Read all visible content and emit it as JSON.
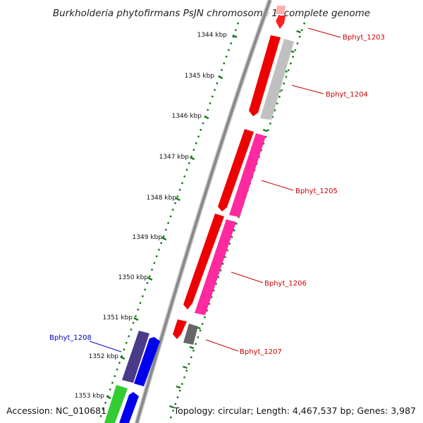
{
  "title": "Burkholderia phytofirmans PsJN chromosome 1, complete genome",
  "footer": {
    "accession": "Accession: NC_010681",
    "summary": "Topology: circular; Length: 4,467,537 bp; Genes: 3,987"
  },
  "colors": {
    "backbone": "#8a8a8a",
    "tick": "#1a7a1a",
    "label_red": "#cc0000",
    "label_blue": "#0000cc"
  },
  "ticks": [
    {
      "label": "1344 kbp"
    },
    {
      "label": "1345 kbp"
    },
    {
      "label": "1346 kbp"
    },
    {
      "label": "1347 kbp"
    },
    {
      "label": "1348 kbp"
    },
    {
      "label": "1349 kbp"
    },
    {
      "label": "1350 kbp"
    },
    {
      "label": "1351 kbp"
    },
    {
      "label": "1352 kbp"
    },
    {
      "label": "1353 kbp"
    }
  ],
  "genes": [
    {
      "label": "Bphyt_1203"
    },
    {
      "label": "Bphyt_1204"
    },
    {
      "label": "Bphyt_1205"
    },
    {
      "label": "Bphyt_1206"
    },
    {
      "label": "Bphyt_1207"
    },
    {
      "label": "Bphyt_1208"
    }
  ]
}
